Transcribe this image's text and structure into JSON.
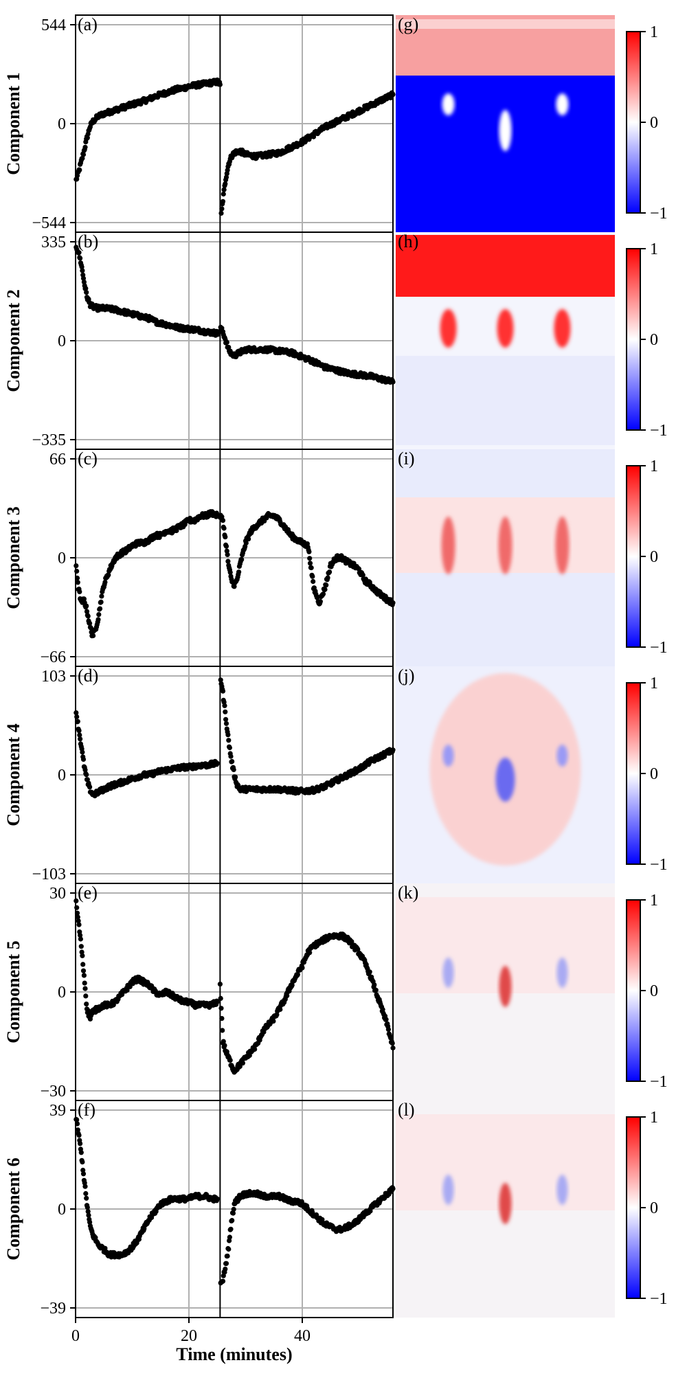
{
  "chart_data": {
    "type": "scatter",
    "xlabel": "Time (minutes)",
    "x_ticks": [
      "0",
      "20",
      "40"
    ],
    "xlim": [
      0,
      56
    ],
    "vertical_marker_x": 25.5,
    "grid": true,
    "panels": [
      {
        "label": "(a)",
        "ylabel": "Component 1",
        "ylim": [
          -544,
          544
        ],
        "yticks": [
          "544",
          "0",
          "−544"
        ],
        "segments": [
          {
            "x": [
              0.1,
              0.5,
              1,
              1.5,
              2,
              2.5,
              3,
              3.5,
              4,
              5,
              6,
              7,
              8,
              9,
              10,
              11,
              12,
              13,
              14,
              15,
              16,
              17,
              18,
              19,
              20,
              21,
              22,
              23,
              24,
              25,
              25.5
            ],
            "y": [
              -310,
              -270,
              -210,
              -150,
              -80,
              -20,
              10,
              25,
              40,
              55,
              65,
              75,
              85,
              95,
              105,
              115,
              125,
              135,
              150,
              160,
              170,
              180,
              190,
              195,
              205,
              210,
              215,
              220,
              225,
              230,
              215
            ]
          },
          {
            "x": [
              25.7,
              26,
              26.5,
              27,
              27.5,
              28,
              29,
              30,
              31,
              32,
              34,
              36,
              38,
              40,
              42,
              44,
              46,
              48,
              50,
              52,
              54,
              56
            ],
            "y": [
              -500,
              -420,
              -300,
              -220,
              -180,
              -160,
              -150,
              -170,
              -175,
              -180,
              -170,
              -160,
              -130,
              -100,
              -60,
              -20,
              10,
              40,
              70,
              100,
              130,
              160
            ]
          }
        ]
      },
      {
        "label": "(b)",
        "ylabel": "Component 2",
        "ylim": [
          -335,
          335
        ],
        "yticks": [
          "335",
          "0",
          "−335"
        ],
        "segments": [
          {
            "x": [
              0.1,
              0.5,
              1,
              1.5,
              2,
              2.5,
              3,
              3.5,
              4,
              5,
              6,
              7,
              8,
              9,
              10,
              11,
              12,
              13,
              14,
              15,
              16,
              17,
              18,
              19,
              20,
              21,
              22,
              23,
              24,
              25,
              25.4
            ],
            "y": [
              320,
              300,
              260,
              200,
              150,
              125,
              115,
              112,
              110,
              110,
              108,
              105,
              100,
              95,
              90,
              85,
              80,
              75,
              65,
              60,
              55,
              50,
              45,
              42,
              40,
              38,
              35,
              30,
              28,
              25,
              30
            ]
          },
          {
            "x": [
              25.6,
              26,
              26.5,
              27,
              27.5,
              28,
              29,
              30,
              31,
              32,
              34,
              36,
              38,
              40,
              42,
              44,
              46,
              48,
              50,
              52,
              54,
              56
            ],
            "y": [
              40,
              30,
              0,
              -30,
              -45,
              -50,
              -40,
              -30,
              -30,
              -30,
              -30,
              -35,
              -40,
              -55,
              -70,
              -90,
              -100,
              -110,
              -115,
              -120,
              -130,
              -140
            ]
          }
        ]
      },
      {
        "label": "(c)",
        "ylabel": "Component 3",
        "ylim": [
          -66,
          66
        ],
        "yticks": [
          "66",
          "0",
          "−66"
        ],
        "segments": [
          {
            "x": [
              0.1,
              0.5,
              1,
              1.5,
              2,
              2.5,
              3,
              3.5,
              4,
              4.5,
              5,
              6,
              7,
              8,
              9,
              10,
              11,
              12,
              13,
              14,
              15,
              16,
              17,
              18,
              19,
              20,
              21,
              22,
              23,
              24,
              25
            ],
            "y": [
              -5,
              -20,
              -30,
              -28,
              -35,
              -45,
              -52,
              -48,
              -40,
              -28,
              -18,
              -8,
              0,
              3,
              5,
              8,
              10,
              10,
              12,
              15,
              15,
              18,
              18,
              20,
              22,
              25,
              25,
              28,
              28,
              30,
              28
            ]
          },
          {
            "x": [
              25.5,
              26,
              26.5,
              27,
              27.5,
              28,
              28.5,
              29,
              30,
              31,
              32,
              33,
              34,
              35,
              36,
              37,
              38,
              39,
              40,
              41,
              41.5,
              42,
              43,
              44,
              45,
              46,
              47,
              48,
              49,
              50,
              51,
              52,
              53,
              54,
              55,
              56
            ],
            "y": [
              28,
              25,
              10,
              -5,
              -15,
              -18,
              -15,
              -5,
              10,
              18,
              22,
              25,
              28,
              28,
              25,
              20,
              15,
              12,
              10,
              8,
              -5,
              -20,
              -30,
              -20,
              -5,
              0,
              0,
              -3,
              -5,
              -8,
              -15,
              -18,
              -22,
              -25,
              -28,
              -30
            ]
          }
        ]
      },
      {
        "label": "(d)",
        "ylabel": "Component 4",
        "ylim": [
          -103,
          103
        ],
        "yticks": [
          "103",
          "0",
          "−103"
        ],
        "segments": [
          {
            "x": [
              0.1,
              0.5,
              1,
              1.5,
              2,
              2.5,
              3,
              3.5,
              4,
              5,
              6,
              7,
              8,
              9,
              10,
              11,
              12,
              13,
              14,
              15,
              16,
              17,
              18,
              19,
              20,
              21,
              22,
              23,
              24,
              25
            ],
            "y": [
              65,
              50,
              30,
              10,
              -5,
              -15,
              -20,
              -20,
              -18,
              -15,
              -12,
              -10,
              -8,
              -6,
              -4,
              -2,
              0,
              0,
              2,
              4,
              5,
              6,
              7,
              8,
              8,
              9,
              10,
              10,
              11,
              12
            ]
          },
          {
            "x": [
              25.6,
              26,
              26.5,
              27,
              27.5,
              28,
              28.5,
              29,
              30,
              31,
              32,
              33,
              34,
              35,
              36,
              37,
              38,
              39,
              40,
              42,
              44,
              46,
              48,
              50,
              52,
              54,
              56
            ],
            "y": [
              100,
              85,
              60,
              35,
              15,
              0,
              -10,
              -15,
              -15,
              -15,
              -15,
              -15,
              -15,
              -15,
              -15,
              -16,
              -16,
              -17,
              -17,
              -16,
              -12,
              -6,
              0,
              6,
              14,
              20,
              26
            ]
          }
        ]
      },
      {
        "label": "(e)",
        "ylabel": "Component 5",
        "ylim": [
          -30,
          30
        ],
        "yticks": [
          "30",
          "0",
          "−30"
        ],
        "segments": [
          {
            "x": [
              0.1,
              0.3,
              0.6,
              1,
              1.5,
              2,
              2.5,
              3,
              4,
              5,
              6,
              7,
              8,
              9,
              10,
              11,
              12,
              13,
              14,
              15,
              16,
              17,
              18,
              19,
              20,
              21,
              22,
              23,
              24,
              25
            ],
            "y": [
              27,
              24,
              20,
              14,
              5,
              -5,
              -8,
              -6,
              -5,
              -4,
              -4,
              -3,
              -1,
              1,
              3,
              4,
              3,
              2,
              0,
              -1,
              0,
              -1,
              -2,
              -3,
              -3,
              -4,
              -4,
              -4,
              -4,
              -3
            ]
          },
          {
            "x": [
              25.5,
              26,
              26.5,
              27,
              27.5,
              28,
              28.5,
              29,
              30,
              31,
              32,
              33,
              34,
              35,
              36,
              37,
              38,
              39,
              40,
              41,
              42,
              43,
              44,
              45,
              46,
              47,
              48,
              49,
              50,
              51,
              52,
              53,
              54,
              55,
              56
            ],
            "y": [
              2,
              -15,
              -18,
              -20,
              -22,
              -24,
              -23,
              -22,
              -20,
              -18,
              -16,
              -12,
              -10,
              -8,
              -5,
              -2,
              2,
              5,
              8,
              12,
              14,
              15,
              16,
              17,
              17,
              17,
              16,
              14,
              12,
              9,
              5,
              0,
              -5,
              -10,
              -17
            ]
          }
        ]
      },
      {
        "label": "(f)",
        "ylabel": "Component 6",
        "ylim": [
          -39,
          39
        ],
        "yticks": [
          "39",
          "0",
          "−39"
        ],
        "segments": [
          {
            "x": [
              0.1,
              0.5,
              1,
              1.5,
              2,
              2.5,
              3,
              4,
              5,
              6,
              7,
              8,
              9,
              10,
              11,
              12,
              13,
              14,
              15,
              16,
              17,
              18,
              19,
              20,
              21,
              22,
              23,
              24,
              25
            ],
            "y": [
              36,
              30,
              22,
              12,
              2,
              -6,
              -10,
              -14,
              -16,
              -18,
              -18,
              -18,
              -17,
              -15,
              -12,
              -8,
              -4,
              -1,
              2,
              3,
              4,
              4,
              4,
              4,
              5,
              5,
              5,
              4,
              4
            ]
          },
          {
            "x": [
              25.6,
              26,
              26.5,
              27,
              27.5,
              28,
              29,
              30,
              31,
              32,
              33,
              34,
              35,
              36,
              37,
              38,
              39,
              40,
              41,
              42,
              43,
              44,
              45,
              46,
              47,
              48,
              49,
              50,
              51,
              52,
              53,
              54,
              55,
              56
            ],
            "y": [
              -30,
              -28,
              -22,
              -15,
              -5,
              2,
              5,
              6,
              6,
              6,
              5,
              5,
              5,
              5,
              4,
              3,
              3,
              2,
              0,
              -2,
              -4,
              -6,
              -7,
              -8,
              -8,
              -7,
              -6,
              -4,
              -2,
              0,
              2,
              4,
              6,
              8
            ]
          }
        ]
      }
    ],
    "maps": [
      {
        "label": "(g)",
        "colorbar_ticks": [
          "1",
          "0",
          "−1"
        ],
        "range": [
          -1,
          1
        ],
        "colormap": "bwr"
      },
      {
        "label": "(h)",
        "colorbar_ticks": [
          "1",
          "0",
          "−1"
        ],
        "range": [
          -1,
          1
        ],
        "colormap": "bwr"
      },
      {
        "label": "(i)",
        "colorbar_ticks": [
          "1",
          "0",
          "−1"
        ],
        "range": [
          -1,
          1
        ],
        "colormap": "bwr"
      },
      {
        "label": "(j)",
        "colorbar_ticks": [
          "1",
          "0",
          "−1"
        ],
        "range": [
          -1,
          1
        ],
        "colormap": "bwr"
      },
      {
        "label": "(k)",
        "colorbar_ticks": [
          "1",
          "0",
          "−1"
        ],
        "range": [
          -1,
          1
        ],
        "colormap": "bwr"
      },
      {
        "label": "(l)",
        "colorbar_ticks": [
          "1",
          "0",
          "−1"
        ],
        "range": [
          -1,
          1
        ],
        "colormap": "bwr"
      }
    ],
    "colors": {
      "points": "#000000",
      "grid": "#b0b0b0",
      "positive": "#ff0000",
      "negative": "#0000ff",
      "neutral": "#ffffff"
    }
  }
}
